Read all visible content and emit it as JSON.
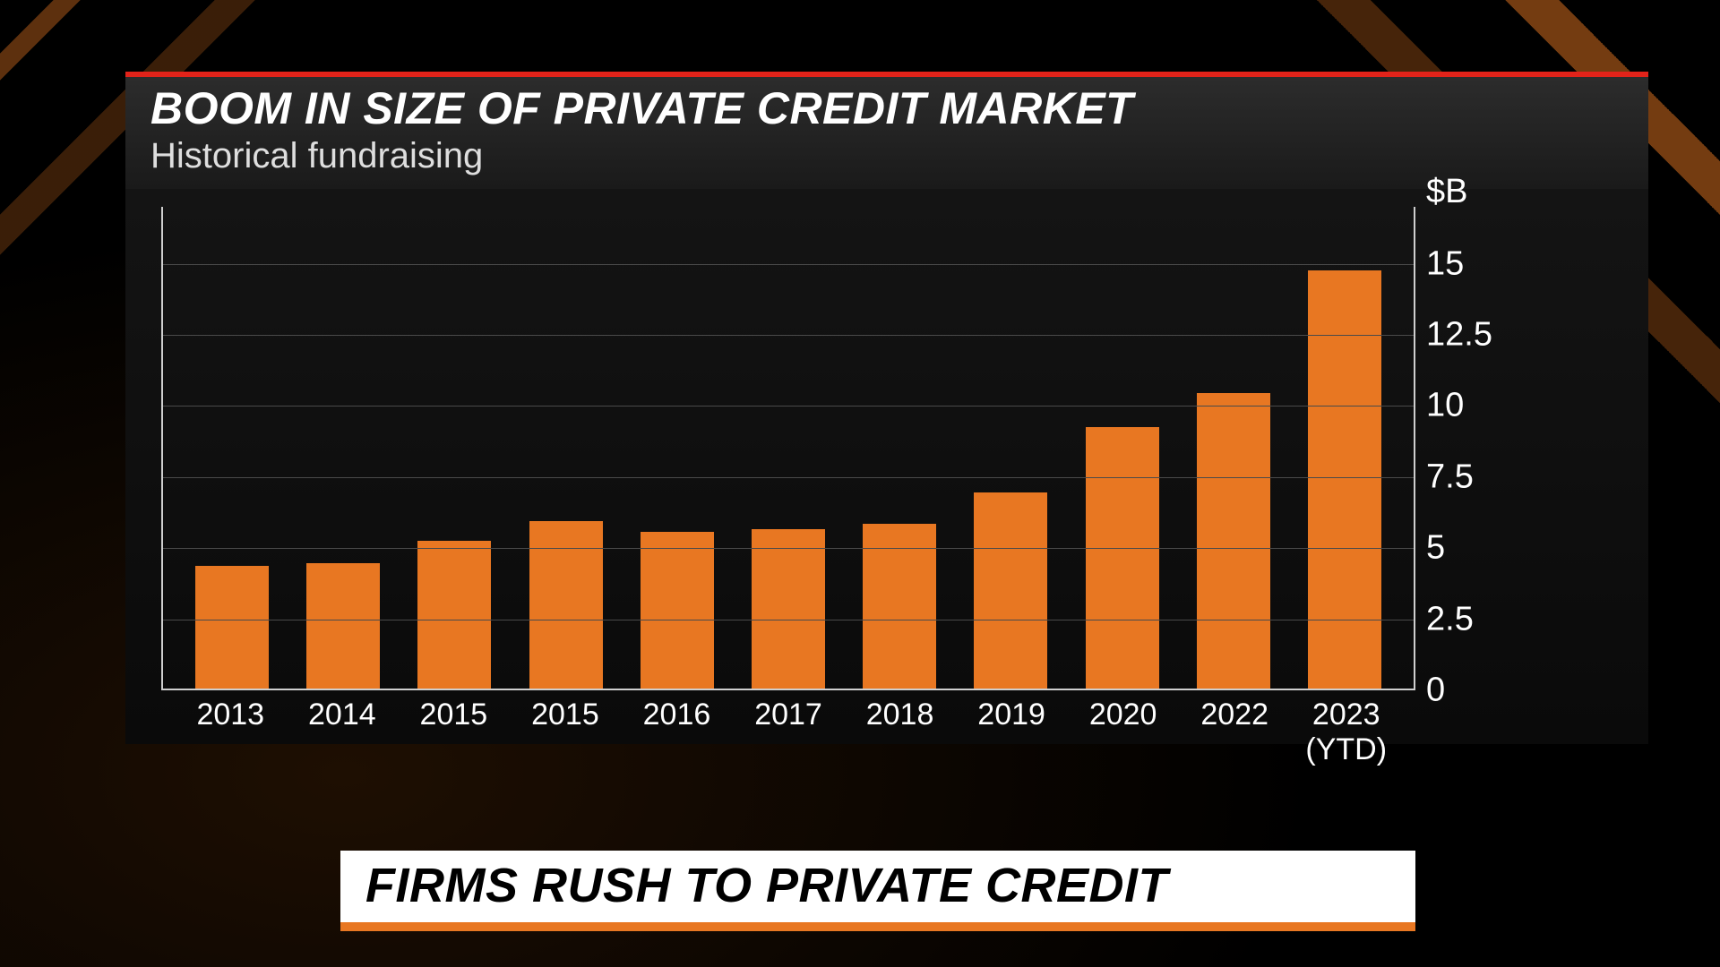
{
  "header": {
    "title": "BOOM IN SIZE OF PRIVATE CREDIT MARKET",
    "subtitle": "Historical fundraising"
  },
  "chart": {
    "type": "bar",
    "unit_label": "$B",
    "y_axis": {
      "min": 0,
      "max": 17.0,
      "ticks": [
        0,
        2.5,
        5,
        7.5,
        10,
        12.5,
        15
      ],
      "tick_labels": [
        "0",
        "2.5",
        "5",
        "7.5",
        "10",
        "12.5",
        "15"
      ]
    },
    "categories": [
      "2013",
      "2014",
      "2015",
      "2015",
      "2016",
      "2017",
      "2018",
      "2019",
      "2020",
      "2022",
      "2023\n(YTD)"
    ],
    "values": [
      4.3,
      4.4,
      5.2,
      5.9,
      5.5,
      5.6,
      5.8,
      6.9,
      9.2,
      10.4,
      14.7
    ],
    "bar_color": "#e87722",
    "grid_color": "#4a4a4a",
    "axis_color": "#cfcfcf",
    "background_color": "#0f0f0f",
    "label_color": "#ffffff",
    "label_fontsize": 34,
    "bar_width_ratio": 0.66
  },
  "lower_third": {
    "text": "FIRMS RUSH TO PRIVATE CREDIT",
    "bg_color": "#ffffff",
    "text_color": "#000000",
    "accent_color": "#e87722"
  },
  "accent_red": "#e2231a",
  "accent_orange": "#e87722"
}
